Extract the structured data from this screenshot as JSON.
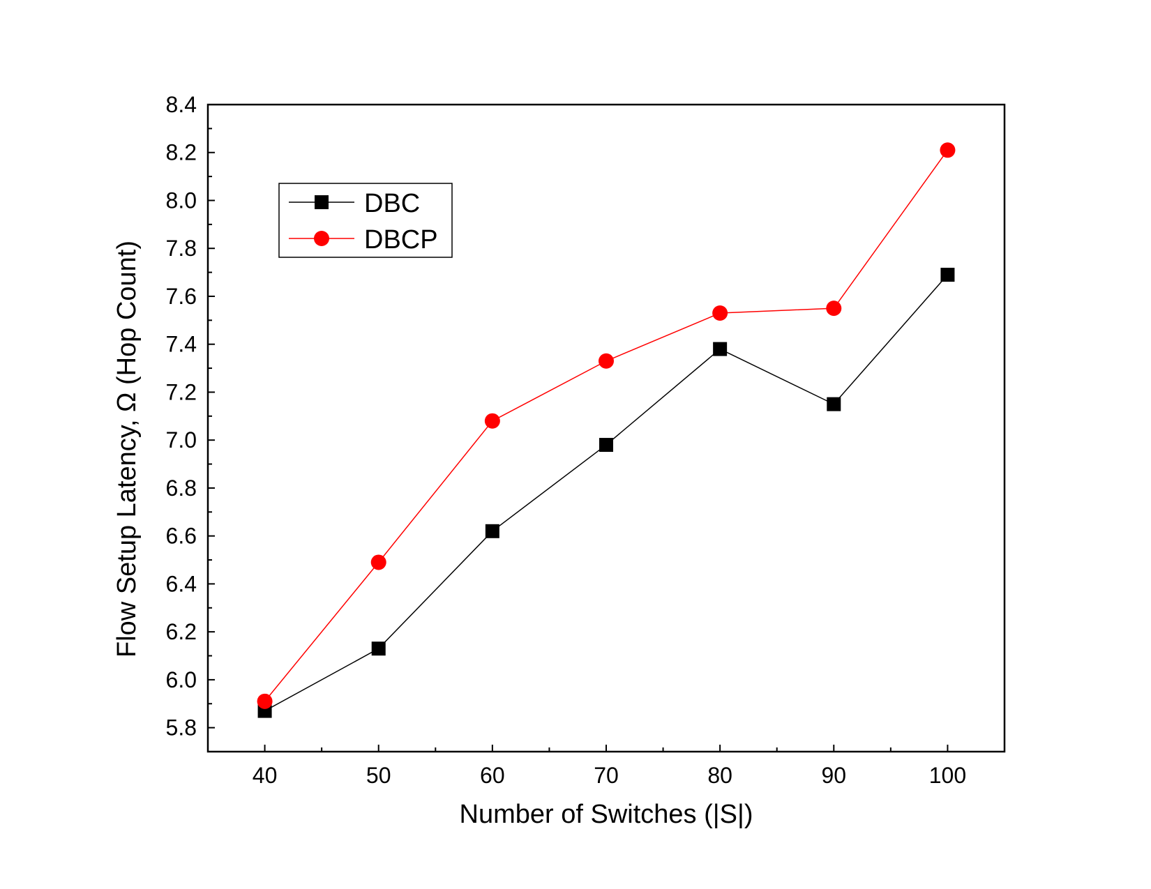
{
  "chart_data": {
    "type": "line",
    "title": "",
    "xlabel": "Number of Switches (|S|)",
    "ylabel": "Flow Setup Latency, Ω (Hop Count)",
    "x": [
      40,
      50,
      60,
      70,
      80,
      90,
      100
    ],
    "xlim": [
      35,
      105
    ],
    "ylim": [
      5.7,
      8.4
    ],
    "x_ticks": [
      "40",
      "50",
      "60",
      "70",
      "80",
      "90",
      "100"
    ],
    "x_tick_values": [
      40,
      50,
      60,
      70,
      80,
      90,
      100
    ],
    "y_ticks": [
      "5.8",
      "6.0",
      "6.2",
      "6.4",
      "6.6",
      "6.8",
      "7.0",
      "7.2",
      "7.4",
      "7.6",
      "7.8",
      "8.0",
      "8.2",
      "8.4"
    ],
    "y_tick_values": [
      5.8,
      6.0,
      6.2,
      6.4,
      6.6,
      6.8,
      7.0,
      7.2,
      7.4,
      7.6,
      7.8,
      8.0,
      8.2,
      8.4
    ],
    "grid": false,
    "legend_position": "top-left",
    "series": [
      {
        "name": "DBC",
        "values": [
          5.87,
          6.13,
          6.62,
          6.98,
          7.38,
          7.15,
          7.69
        ],
        "color": "#000000",
        "marker": "square"
      },
      {
        "name": "DBCP",
        "values": [
          5.91,
          6.49,
          7.08,
          7.33,
          7.53,
          7.55,
          8.21
        ],
        "color": "#ff0000",
        "marker": "circle"
      }
    ]
  }
}
